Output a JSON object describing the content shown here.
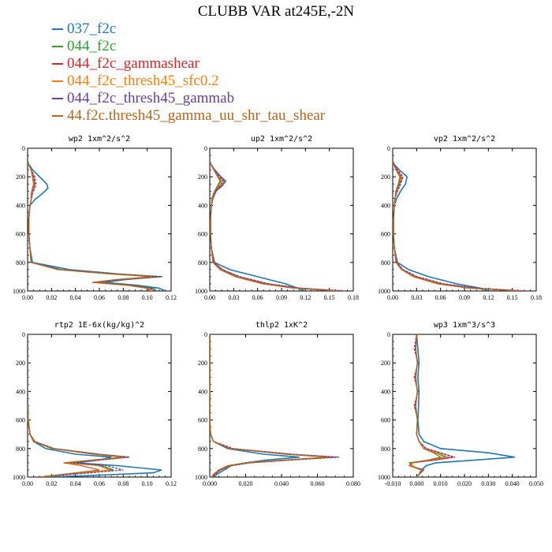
{
  "figure": {
    "title": "CLUBB VAR at245E,-2N",
    "legend": [
      {
        "label": "037_f2c",
        "color": "#1f77b4"
      },
      {
        "label": "044_f2c",
        "color": "#2ca02c"
      },
      {
        "label": "044_f2c_gammashear",
        "color": "#d62728"
      },
      {
        "label": "044_f2c_thresh45_sfc0.2",
        "color": "#ff7f0e"
      },
      {
        "label": "044_f2c_thresh45_gammab",
        "color": "#6a3d9a"
      },
      {
        "label": "44.f2c.thresh45_gamma_uu_shr_tau_shear",
        "color": "#b5651d"
      }
    ]
  },
  "chart_data": [
    {
      "type": "line",
      "title": "wp2  1xm^2/s^2",
      "xlim": [
        0,
        0.12
      ],
      "ylim": [
        1000,
        0
      ],
      "xticks": [
        "0.00",
        "0.02",
        "0.04",
        "0.06",
        "0.08",
        "0.10",
        "0.12"
      ],
      "yticks": [
        "0",
        "200",
        "400",
        "600",
        "800",
        "1000"
      ],
      "y": [
        100,
        150,
        200,
        250,
        280,
        320,
        360,
        400,
        500,
        600,
        700,
        800,
        850,
        880,
        900,
        920,
        940,
        960,
        980,
        1000
      ],
      "series": [
        {
          "values": [
            0.0,
            0.004,
            0.01,
            0.016,
            0.017,
            0.012,
            0.006,
            0.002,
            0.001,
            0.001,
            0.002,
            0.004,
            0.035,
            0.075,
            0.11,
            0.082,
            0.064,
            0.092,
            0.11,
            0.115
          ]
        },
        {
          "values": [
            0.0,
            0.003,
            0.005,
            0.006,
            0.005,
            0.004,
            0.003,
            0.002,
            0.001,
            0.001,
            0.002,
            0.003,
            0.028,
            0.072,
            0.113,
            0.075,
            0.058,
            0.088,
            0.105,
            0.108
          ]
        },
        {
          "values": [
            0.0,
            0.003,
            0.006,
            0.007,
            0.006,
            0.004,
            0.003,
            0.002,
            0.001,
            0.001,
            0.002,
            0.003,
            0.027,
            0.07,
            0.108,
            0.078,
            0.056,
            0.086,
            0.102,
            0.106
          ]
        },
        {
          "values": [
            0.0,
            0.003,
            0.005,
            0.006,
            0.005,
            0.004,
            0.003,
            0.002,
            0.001,
            0.001,
            0.002,
            0.003,
            0.026,
            0.07,
            0.106,
            0.076,
            0.055,
            0.085,
            0.1,
            0.104
          ]
        },
        {
          "values": [
            0.0,
            0.003,
            0.005,
            0.006,
            0.005,
            0.004,
            0.003,
            0.002,
            0.001,
            0.001,
            0.002,
            0.003,
            0.027,
            0.071,
            0.112,
            0.077,
            0.057,
            0.087,
            0.103,
            0.107
          ]
        },
        {
          "values": [
            0.0,
            0.003,
            0.004,
            0.005,
            0.004,
            0.003,
            0.003,
            0.002,
            0.001,
            0.001,
            0.002,
            0.003,
            0.025,
            0.068,
            0.104,
            0.074,
            0.054,
            0.084,
            0.099,
            0.103
          ]
        }
      ]
    },
    {
      "type": "line",
      "title": "up2  1xm^2/s^2",
      "xlim": [
        0,
        0.18
      ],
      "ylim": [
        1000,
        0
      ],
      "xticks": [
        "0.00",
        "0.03",
        "0.06",
        "0.09",
        "0.12",
        "0.15",
        "0.18"
      ],
      "yticks": [
        "0",
        "200",
        "400",
        "600",
        "800",
        "1000"
      ],
      "y": [
        100,
        150,
        200,
        230,
        260,
        300,
        350,
        400,
        500,
        600,
        700,
        800,
        850,
        900,
        950,
        980,
        1000
      ],
      "series": [
        {
          "values": [
            0.0,
            0.006,
            0.014,
            0.02,
            0.016,
            0.008,
            0.004,
            0.002,
            0.001,
            0.001,
            0.002,
            0.006,
            0.025,
            0.06,
            0.095,
            0.11,
            0.12
          ]
        },
        {
          "values": [
            0.0,
            0.005,
            0.01,
            0.013,
            0.01,
            0.006,
            0.003,
            0.002,
            0.001,
            0.001,
            0.002,
            0.005,
            0.015,
            0.035,
            0.07,
            0.11,
            0.16
          ]
        },
        {
          "values": [
            0.0,
            0.006,
            0.013,
            0.019,
            0.015,
            0.007,
            0.004,
            0.002,
            0.001,
            0.001,
            0.002,
            0.005,
            0.016,
            0.036,
            0.072,
            0.112,
            0.17
          ]
        },
        {
          "values": [
            0.0,
            0.005,
            0.011,
            0.016,
            0.013,
            0.006,
            0.003,
            0.002,
            0.001,
            0.001,
            0.002,
            0.005,
            0.014,
            0.033,
            0.068,
            0.108,
            0.165
          ]
        },
        {
          "values": [
            0.0,
            0.005,
            0.012,
            0.017,
            0.014,
            0.006,
            0.003,
            0.002,
            0.001,
            0.001,
            0.002,
            0.005,
            0.016,
            0.038,
            0.074,
            0.114,
            0.168
          ]
        },
        {
          "values": [
            0.0,
            0.005,
            0.01,
            0.014,
            0.011,
            0.006,
            0.003,
            0.002,
            0.001,
            0.001,
            0.002,
            0.004,
            0.013,
            0.032,
            0.066,
            0.105,
            0.16
          ]
        }
      ]
    },
    {
      "type": "line",
      "title": "vp2  1xm^2/s^2",
      "xlim": [
        0,
        0.18
      ],
      "ylim": [
        1000,
        0
      ],
      "xticks": [
        "0.00",
        "0.03",
        "0.06",
        "0.09",
        "0.12",
        "0.15",
        "0.18"
      ],
      "yticks": [
        "0",
        "200",
        "400",
        "600",
        "800",
        "1000"
      ],
      "y": [
        100,
        150,
        200,
        250,
        300,
        350,
        400,
        500,
        600,
        700,
        800,
        850,
        900,
        950,
        980,
        1000
      ],
      "series": [
        {
          "values": [
            0.0,
            0.008,
            0.018,
            0.016,
            0.01,
            0.005,
            0.002,
            0.001,
            0.001,
            0.002,
            0.006,
            0.02,
            0.045,
            0.08,
            0.11,
            0.12
          ]
        },
        {
          "values": [
            0.0,
            0.005,
            0.01,
            0.008,
            0.005,
            0.003,
            0.002,
            0.001,
            0.001,
            0.002,
            0.005,
            0.012,
            0.028,
            0.06,
            0.1,
            0.16
          ]
        },
        {
          "values": [
            0.0,
            0.006,
            0.013,
            0.01,
            0.006,
            0.003,
            0.002,
            0.001,
            0.001,
            0.002,
            0.005,
            0.013,
            0.03,
            0.062,
            0.104,
            0.168
          ]
        },
        {
          "values": [
            0.0,
            0.005,
            0.011,
            0.009,
            0.005,
            0.003,
            0.002,
            0.001,
            0.001,
            0.002,
            0.005,
            0.012,
            0.027,
            0.058,
            0.098,
            0.162
          ]
        },
        {
          "values": [
            0.0,
            0.005,
            0.012,
            0.009,
            0.005,
            0.003,
            0.002,
            0.001,
            0.001,
            0.002,
            0.005,
            0.013,
            0.031,
            0.064,
            0.106,
            0.165
          ]
        },
        {
          "values": [
            0.0,
            0.004,
            0.009,
            0.007,
            0.004,
            0.003,
            0.002,
            0.001,
            0.001,
            0.002,
            0.004,
            0.011,
            0.026,
            0.056,
            0.095,
            0.158
          ]
        }
      ]
    },
    {
      "type": "line",
      "title": "rtp2  1E-6x(kg/kg)^2",
      "xlim": [
        0,
        0.12
      ],
      "ylim": [
        1000,
        0
      ],
      "xticks": [
        "0.00",
        "0.02",
        "0.04",
        "0.06",
        "0.08",
        "0.10",
        "0.12"
      ],
      "yticks": [
        "0",
        "200",
        "400",
        "600",
        "800",
        "1000"
      ],
      "y": [
        0,
        200,
        400,
        600,
        700,
        750,
        800,
        840,
        860,
        880,
        900,
        920,
        950,
        970,
        990,
        1000
      ],
      "series": [
        {
          "values": [
            0.0,
            0.0,
            0.0,
            0.0005,
            0.002,
            0.005,
            0.015,
            0.04,
            0.07,
            0.06,
            0.04,
            0.075,
            0.112,
            0.105,
            0.05,
            0.015
          ]
        },
        {
          "values": [
            0.0,
            0.0,
            0.0,
            0.0005,
            0.002,
            0.006,
            0.022,
            0.06,
            0.085,
            0.06,
            0.035,
            0.062,
            0.072,
            0.048,
            0.022,
            0.01
          ]
        },
        {
          "values": [
            0.0,
            0.0,
            0.0,
            0.0005,
            0.002,
            0.006,
            0.021,
            0.058,
            0.084,
            0.058,
            0.034,
            0.06,
            0.07,
            0.047,
            0.021,
            0.01
          ]
        },
        {
          "values": [
            0.0,
            0.0,
            0.0,
            0.0005,
            0.002,
            0.006,
            0.021,
            0.057,
            0.083,
            0.057,
            0.033,
            0.059,
            0.069,
            0.046,
            0.021,
            0.01
          ]
        },
        {
          "values": [
            0.0,
            0.0,
            0.0,
            0.0005,
            0.002,
            0.006,
            0.022,
            0.059,
            0.085,
            0.061,
            0.036,
            0.066,
            0.08,
            0.052,
            0.023,
            0.01
          ]
        },
        {
          "values": [
            0.0,
            0.0,
            0.0,
            0.0005,
            0.002,
            0.005,
            0.02,
            0.055,
            0.08,
            0.055,
            0.03,
            0.045,
            0.06,
            0.04,
            0.02,
            0.01
          ]
        }
      ]
    },
    {
      "type": "line",
      "title": "thlp2  1xK^2",
      "xlim": [
        0,
        0.08
      ],
      "ylim": [
        1000,
        0
      ],
      "xticks": [
        "0.000",
        "0.020",
        "0.040",
        "0.060",
        "0.080"
      ],
      "yticks": [
        "0",
        "200",
        "400",
        "600",
        "800",
        "1000"
      ],
      "y": [
        0,
        200,
        400,
        600,
        700,
        750,
        800,
        840,
        860,
        880,
        900,
        920,
        950,
        980,
        1000
      ],
      "series": [
        {
          "values": [
            0.0,
            0.0,
            0.0,
            0.0,
            0.0005,
            0.002,
            0.01,
            0.03,
            0.05,
            0.032,
            0.02,
            0.012,
            0.008,
            0.004,
            0.002
          ]
        },
        {
          "values": [
            0.0,
            0.0,
            0.0,
            0.0,
            0.0005,
            0.002,
            0.012,
            0.045,
            0.07,
            0.045,
            0.022,
            0.012,
            0.006,
            0.003,
            0.001
          ]
        },
        {
          "values": [
            0.0,
            0.0,
            0.0,
            0.0,
            0.0005,
            0.002,
            0.012,
            0.044,
            0.069,
            0.044,
            0.021,
            0.011,
            0.006,
            0.003,
            0.001
          ]
        },
        {
          "values": [
            0.0,
            0.0,
            0.0,
            0.0,
            0.0005,
            0.002,
            0.012,
            0.043,
            0.068,
            0.043,
            0.021,
            0.011,
            0.006,
            0.003,
            0.001
          ]
        },
        {
          "values": [
            0.0,
            0.0,
            0.0,
            0.0,
            0.0005,
            0.002,
            0.013,
            0.046,
            0.072,
            0.046,
            0.023,
            0.012,
            0.006,
            0.003,
            0.001
          ]
        },
        {
          "values": [
            0.0,
            0.0,
            0.0,
            0.0,
            0.0005,
            0.002,
            0.011,
            0.042,
            0.066,
            0.042,
            0.02,
            0.01,
            0.005,
            0.002,
            0.001
          ]
        }
      ]
    },
    {
      "type": "line",
      "title": "wp3  1xm^3/s^3",
      "xlim": [
        -0.01,
        0.05
      ],
      "ylim": [
        1000,
        0
      ],
      "xticks": [
        "-0.010",
        "0.000",
        "0.010",
        "0.020",
        "0.030",
        "0.040",
        "0.050"
      ],
      "yticks": [
        "0",
        "200",
        "400",
        "600",
        "800",
        "1000"
      ],
      "y": [
        0,
        100,
        200,
        300,
        400,
        500,
        600,
        700,
        750,
        800,
        830,
        860,
        880,
        900,
        920,
        950,
        980,
        1000
      ],
      "series": [
        {
          "values": [
            0.0,
            0.0005,
            0.001,
            0.0005,
            0.001,
            0.0008,
            0.0005,
            0.001,
            0.003,
            0.01,
            0.03,
            0.041,
            0.025,
            0.008,
            0.004,
            0.002,
            0.001,
            0.0
          ]
        },
        {
          "values": [
            0.0,
            -0.0005,
            0.0003,
            -0.0005,
            0.0003,
            -0.0005,
            0.0003,
            0.0,
            0.001,
            0.003,
            0.008,
            0.012,
            0.006,
            -0.003,
            -0.002,
            0.002,
            0.001,
            0.0
          ]
        },
        {
          "values": [
            0.0,
            -0.001,
            0.0005,
            -0.001,
            0.0005,
            -0.001,
            0.0005,
            0.0,
            0.001,
            0.004,
            0.01,
            0.016,
            0.008,
            -0.002,
            -0.003,
            0.003,
            0.001,
            0.0
          ]
        },
        {
          "values": [
            0.0,
            -0.0005,
            0.0004,
            -0.0008,
            0.0004,
            -0.0008,
            0.0004,
            0.0,
            0.001,
            0.003,
            0.009,
            0.013,
            0.007,
            -0.002,
            -0.002,
            0.002,
            0.001,
            0.0
          ]
        },
        {
          "values": [
            0.0,
            -0.0008,
            0.0005,
            -0.0008,
            0.0005,
            -0.0008,
            0.0005,
            0.0,
            0.001,
            0.004,
            0.01,
            0.015,
            0.008,
            -0.002,
            -0.003,
            0.003,
            0.001,
            0.0
          ]
        },
        {
          "values": [
            0.0,
            -0.0003,
            0.0003,
            -0.0003,
            0.0003,
            -0.0003,
            0.0003,
            0.0,
            0.001,
            0.003,
            0.007,
            0.01,
            0.005,
            -0.002,
            -0.003,
            0.002,
            0.001,
            0.0
          ]
        }
      ]
    }
  ]
}
